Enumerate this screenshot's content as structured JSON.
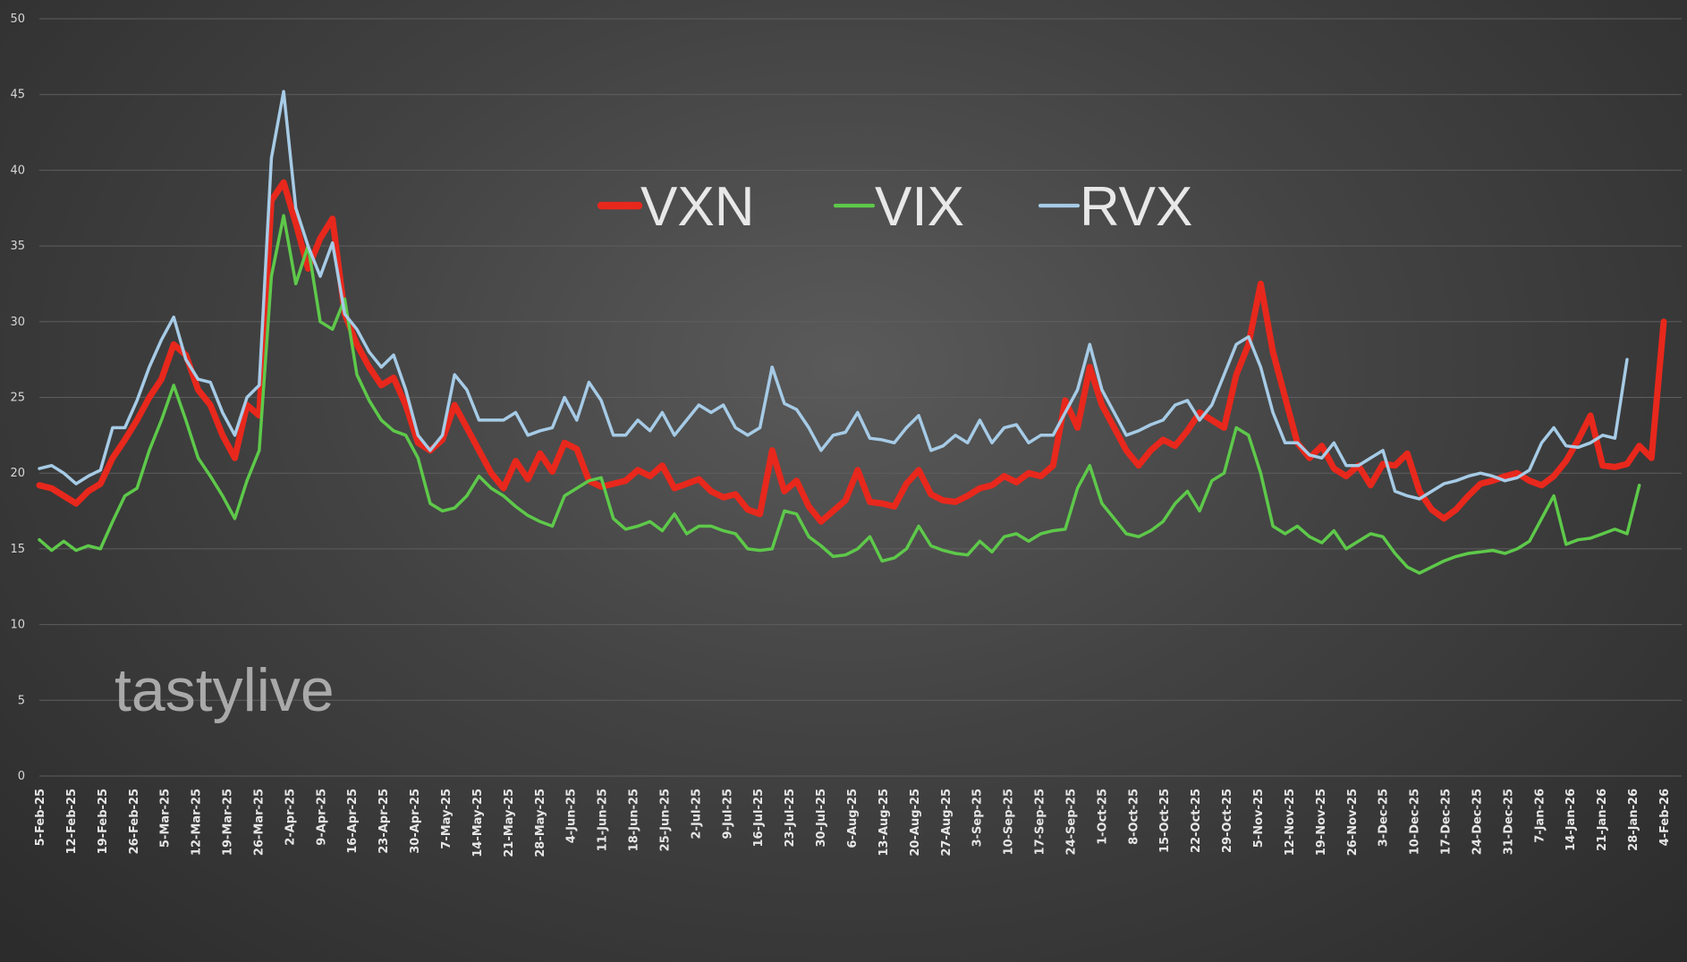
{
  "watermark": "tastylive",
  "colors": {
    "VXN": "#e8281c",
    "VIX": "#5ec94a",
    "RVX": "#a6cbe6",
    "background": "#3a3a3a"
  },
  "chart_data": {
    "type": "line",
    "title": "",
    "xlabel": "",
    "ylabel": "",
    "ylim": [
      0,
      50
    ],
    "yticks": [
      0,
      5,
      10,
      15,
      20,
      25,
      30,
      35,
      40,
      45,
      50
    ],
    "grid": true,
    "legend_position": "top-center",
    "x_tick_labels": [
      "5-Feb-25",
      "12-Feb-25",
      "19-Feb-25",
      "26-Feb-25",
      "5-Mar-25",
      "12-Mar-25",
      "19-Mar-25",
      "26-Mar-25",
      "2-Apr-25",
      "9-Apr-25",
      "16-Apr-25",
      "23-Apr-25",
      "30-Apr-25",
      "7-May-25",
      "14-May-25",
      "21-May-25",
      "28-May-25",
      "4-Jun-25",
      "11-Jun-25",
      "18-Jun-25",
      "25-Jun-25",
      "2-Jul-25",
      "9-Jul-25",
      "16-Jul-25",
      "23-Jul-25",
      "30-Jul-25",
      "6-Aug-25",
      "13-Aug-25",
      "20-Aug-25",
      "27-Aug-25",
      "3-Sep-25",
      "10-Sep-25",
      "17-Sep-25",
      "24-Sep-25",
      "1-Oct-25",
      "8-Oct-25",
      "15-Oct-25",
      "22-Oct-25",
      "29-Oct-25",
      "5-Nov-25",
      "12-Nov-25",
      "19-Nov-25",
      "26-Nov-25",
      "3-Dec-25",
      "10-Dec-25",
      "17-Dec-25",
      "24-Dec-25",
      "31-Dec-25",
      "7-Jan-26",
      "14-Jan-26",
      "21-Jan-26",
      "28-Jan-26",
      "4-Feb-26"
    ],
    "x_points_per_tick": 2,
    "series": [
      {
        "name": "VXN",
        "values": [
          19.2,
          19.0,
          18.5,
          18.0,
          18.8,
          19.3,
          21.0,
          22.2,
          23.5,
          25.0,
          26.2,
          28.5,
          27.8,
          25.5,
          24.5,
          22.5,
          21.0,
          24.5,
          23.8,
          38.0,
          39.2,
          36.5,
          33.5,
          35.5,
          36.8,
          30.5,
          28.5,
          27.0,
          25.8,
          26.3,
          24.5,
          22.0,
          21.5,
          22.2,
          24.5,
          23.0,
          21.5,
          20.0,
          19.0,
          20.8,
          19.6,
          21.3,
          20.1,
          22.0,
          21.6,
          19.5,
          19.1,
          19.3,
          19.5,
          20.2,
          19.8,
          20.5,
          19.0,
          19.3,
          19.6,
          18.8,
          18.4,
          18.6,
          17.6,
          17.3,
          21.5,
          18.8,
          19.5,
          17.8,
          16.8,
          17.5,
          18.2,
          20.2,
          18.1,
          18.0,
          17.8,
          19.3,
          20.2,
          18.6,
          18.2,
          18.1,
          18.5,
          19.0,
          19.2,
          19.8,
          19.4,
          20.0,
          19.8,
          20.5,
          24.8,
          23.0,
          27.0,
          24.5,
          23.0,
          21.5,
          20.5,
          21.5,
          22.2,
          21.8,
          22.8,
          24.0,
          23.5,
          23.0,
          26.5,
          28.5,
          32.5,
          28.0,
          25.0,
          22.0,
          21.0,
          21.8,
          20.3,
          19.8,
          20.5,
          19.2,
          20.6,
          20.5,
          21.3,
          18.8,
          17.6,
          17.0,
          17.6,
          18.5,
          19.3,
          19.5,
          19.8,
          20.0,
          19.5,
          19.2,
          19.8,
          20.8,
          22.2,
          23.8,
          20.5,
          20.4,
          20.6,
          21.8,
          21.0,
          30.0
        ]
      },
      {
        "name": "VIX",
        "values": [
          15.6,
          14.9,
          15.5,
          14.9,
          15.2,
          15.0,
          16.8,
          18.5,
          19.0,
          21.5,
          23.5,
          25.8,
          23.5,
          21.0,
          19.8,
          18.5,
          17.0,
          19.5,
          21.5,
          33.0,
          37.0,
          32.5,
          35.0,
          30.0,
          29.5,
          31.5,
          26.5,
          24.8,
          23.5,
          22.8,
          22.5,
          21.0,
          18.0,
          17.5,
          17.7,
          18.5,
          19.8,
          19.0,
          18.5,
          17.8,
          17.2,
          16.8,
          16.5,
          18.5,
          19.0,
          19.5,
          19.7,
          17.0,
          16.3,
          16.5,
          16.8,
          16.2,
          17.3,
          16.0,
          16.5,
          16.5,
          16.2,
          16.0,
          15.0,
          14.9,
          15.0,
          17.5,
          17.3,
          15.8,
          15.2,
          14.5,
          14.6,
          15.0,
          15.8,
          14.2,
          14.4,
          15.0,
          16.5,
          15.2,
          14.9,
          14.7,
          14.6,
          15.5,
          14.8,
          15.8,
          16.0,
          15.5,
          16.0,
          16.2,
          16.3,
          19.0,
          20.5,
          18.0,
          17.0,
          16.0,
          15.8,
          16.2,
          16.8,
          18.0,
          18.8,
          17.5,
          19.5,
          20.0,
          23.0,
          22.5,
          20.0,
          16.5,
          16.0,
          16.5,
          15.8,
          15.4,
          16.2,
          15.0,
          15.5,
          16.0,
          15.8,
          14.7,
          13.8,
          13.4,
          13.8,
          14.2,
          14.5,
          14.7,
          14.8,
          14.9,
          14.7,
          15.0,
          15.5,
          17.0,
          18.5,
          15.3,
          15.6,
          15.7,
          16.0,
          16.3,
          16.0,
          19.2
        ]
      },
      {
        "name": "RVX",
        "values": [
          20.3,
          20.5,
          20.0,
          19.3,
          19.8,
          20.2,
          23.0,
          23.0,
          24.8,
          27.0,
          28.8,
          30.3,
          27.5,
          26.2,
          26.0,
          24.0,
          22.5,
          25.0,
          25.8,
          40.8,
          45.2,
          37.5,
          35.0,
          33.0,
          35.2,
          30.5,
          29.5,
          28.0,
          27.0,
          27.8,
          25.5,
          22.5,
          21.5,
          22.5,
          26.5,
          25.5,
          23.5,
          23.5,
          23.5,
          24.0,
          22.5,
          22.8,
          23.0,
          25.0,
          23.5,
          26.0,
          24.8,
          22.5,
          22.5,
          23.5,
          22.8,
          24.0,
          22.5,
          23.5,
          24.5,
          24.0,
          24.5,
          23.0,
          22.5,
          23.0,
          27.0,
          24.6,
          24.2,
          23.0,
          21.5,
          22.5,
          22.7,
          24.0,
          22.3,
          22.2,
          22.0,
          23.0,
          23.8,
          21.5,
          21.8,
          22.5,
          22.0,
          23.5,
          22.0,
          23.0,
          23.2,
          22.0,
          22.5,
          22.5,
          24.0,
          25.5,
          28.5,
          25.5,
          24.0,
          22.5,
          22.8,
          23.2,
          23.5,
          24.5,
          24.8,
          23.5,
          24.5,
          26.5,
          28.5,
          29.0,
          27.0,
          24.0,
          22.0,
          22.0,
          21.2,
          21.0,
          22.0,
          20.5,
          20.5,
          21.0,
          21.5,
          18.8,
          18.5,
          18.3,
          18.8,
          19.3,
          19.5,
          19.8,
          20.0,
          19.8,
          19.5,
          19.7,
          20.2,
          22.0,
          23.0,
          21.8,
          21.7,
          22.0,
          22.5,
          22.3,
          27.5
        ]
      }
    ]
  }
}
